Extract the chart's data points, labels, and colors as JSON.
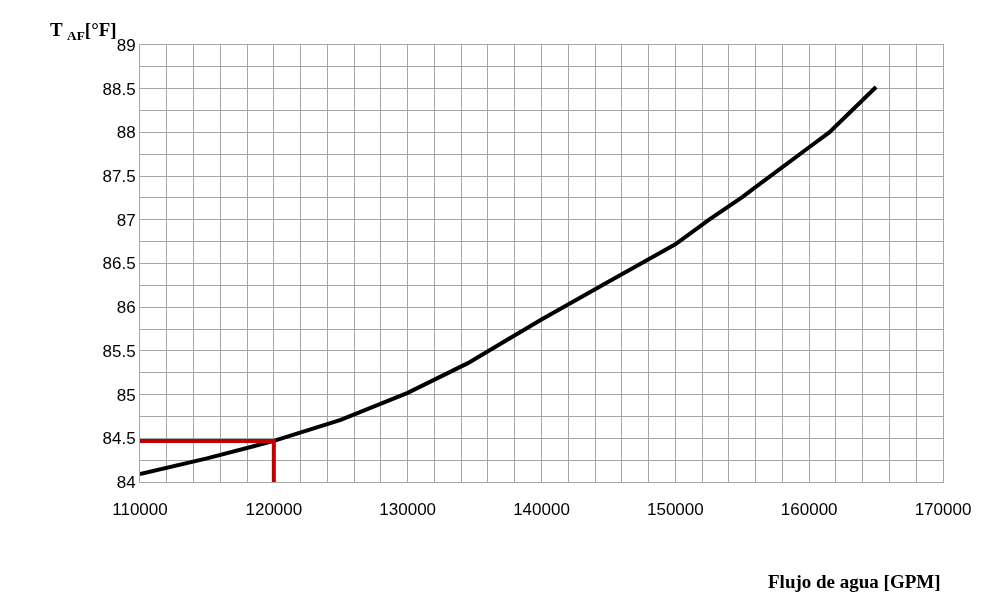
{
  "chart_data": {
    "type": "line",
    "xlabel": "Flujo de agua [GPM]",
    "ylabel": "T $_{AF}$[°F]",
    "xlim": [
      110000,
      170000
    ],
    "ylim": [
      84,
      89
    ],
    "xticks": [
      110000,
      {
        "value": 112000,
        "label": null
      },
      {
        "value": 114000,
        "label": null
      },
      {
        "value": 116000,
        "label": null
      },
      {
        "value": 118000,
        "label": null
      },
      120000,
      {
        "value": 122000,
        "label": null
      },
      {
        "value": 124000,
        "label": null
      },
      {
        "value": 126000,
        "label": null
      },
      {
        "value": 128000,
        "label": null
      },
      130000,
      {
        "value": 132000,
        "label": null
      },
      {
        "value": 134000,
        "label": null
      },
      {
        "value": 136000,
        "label": null
      },
      {
        "value": 138000,
        "label": null
      },
      140000,
      {
        "value": 142000,
        "label": null
      },
      {
        "value": 144000,
        "label": null
      },
      {
        "value": 146000,
        "label": null
      },
      {
        "value": 148000,
        "label": null
      },
      150000,
      {
        "value": 152000,
        "label": null
      },
      {
        "value": 154000,
        "label": null
      },
      {
        "value": 156000,
        "label": null
      },
      {
        "value": 158000,
        "label": null
      },
      160000,
      {
        "value": 162000,
        "label": null
      },
      {
        "value": 164000,
        "label": null
      },
      {
        "value": 166000,
        "label": null
      },
      {
        "value": 168000,
        "label": null
      },
      170000
    ],
    "yticks": [
      84,
      {
        "value": 84.25,
        "label": null
      },
      84.5,
      {
        "value": 84.75,
        "label": null
      },
      85,
      {
        "value": 85.25,
        "label": null
      },
      85.5,
      {
        "value": 85.75,
        "label": null
      },
      86,
      {
        "value": 86.25,
        "label": null
      },
      86.5,
      {
        "value": 86.75,
        "label": null
      },
      87,
      {
        "value": 87.25,
        "label": null
      },
      87.5,
      {
        "value": 87.75,
        "label": null
      },
      88,
      {
        "value": 88.25,
        "label": null
      },
      88.5,
      {
        "value": 88.75,
        "label": null
      },
      89
    ],
    "grid": true,
    "marker": "none",
    "line_style": "solid",
    "series": [
      {
        "color": "#000000",
        "x": [
          110000,
          115000,
          120000,
          125000,
          130000,
          134500,
          140000,
          145000,
          150000,
          152500,
          155000,
          157100,
          160000,
          161500,
          165000
        ],
        "values": [
          84.09,
          84.27,
          84.47,
          84.71,
          85.02,
          85.36,
          85.86,
          86.29,
          86.72,
          87.0,
          87.26,
          87.5,
          87.83,
          88.0,
          88.52
        ]
      },
      {
        "color": "#c00000",
        "x": [
          110000,
          120000,
          120000
        ],
        "values": [
          84.47,
          84.47,
          84
        ]
      }
    ]
  }
}
